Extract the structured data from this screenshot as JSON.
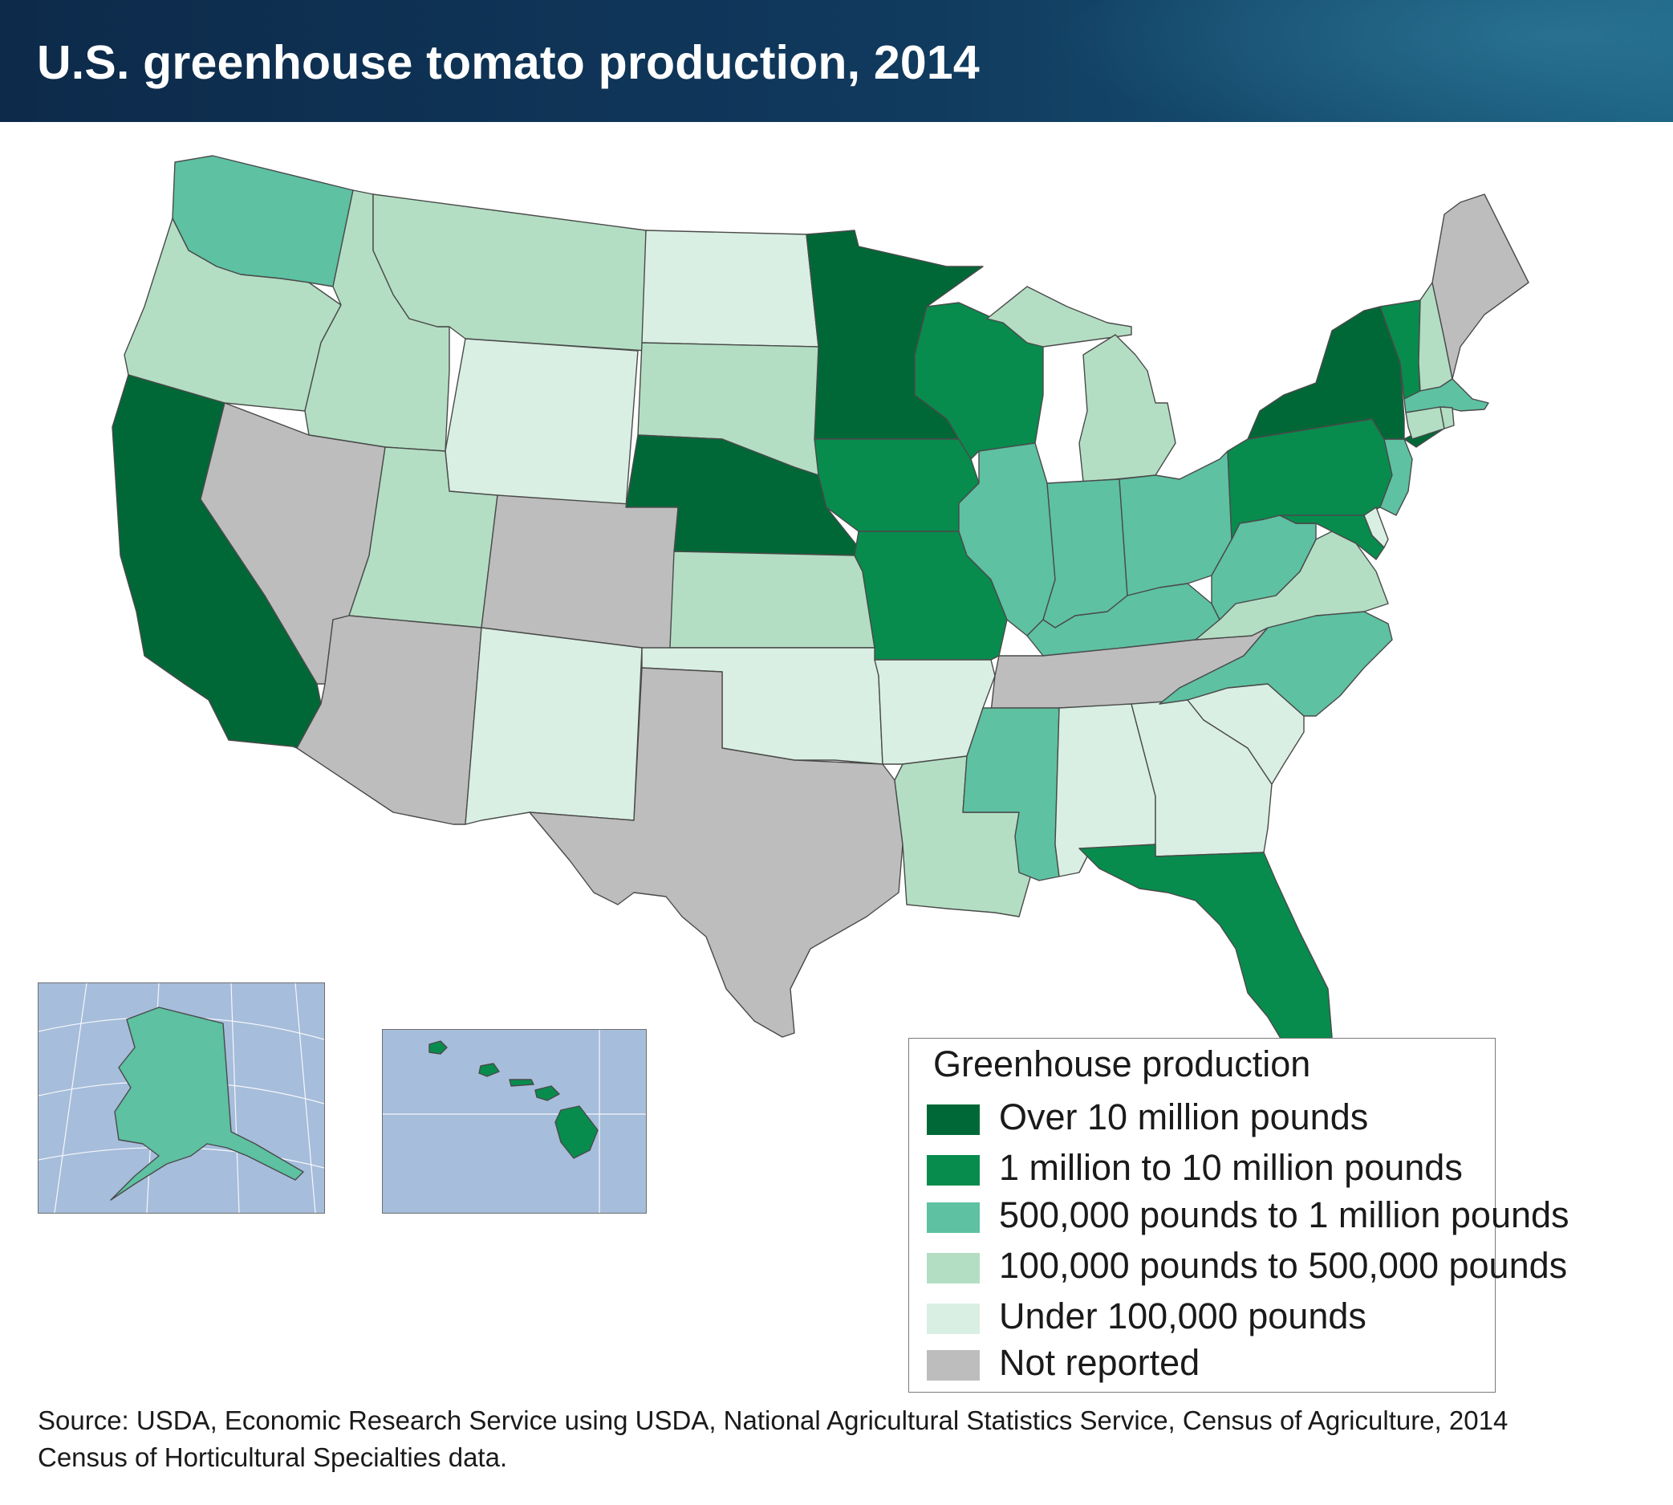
{
  "title": "U.S. greenhouse tomato production, 2014",
  "colors": {
    "over_10m": "#006837",
    "m1_to_10m": "#078c4e",
    "k500_to_1m": "#5dc1a2",
    "k100_to_500k": "#b3dec3",
    "under_100k": "#d9efe3",
    "not_reported": "#bdbdbd",
    "water": "#a6bddb"
  },
  "legend": {
    "title": "Greenhouse production",
    "items": [
      {
        "label": "Over 10 million pounds",
        "category": "over_10m"
      },
      {
        "label": "1 million to 10 million pounds",
        "category": "m1_to_10m"
      },
      {
        "label": "500,000 pounds to 1 million pounds",
        "category": "k500_to_1m"
      },
      {
        "label": "100,000 pounds to 500,000 pounds",
        "category": "k100_to_500k"
      },
      {
        "label": "Under 100,000 pounds",
        "category": "under_100k"
      },
      {
        "label": "Not reported",
        "category": "not_reported"
      }
    ]
  },
  "states": {
    "WA": "k500_to_1m",
    "OR": "k100_to_500k",
    "CA": "over_10m",
    "ID": "k100_to_500k",
    "NV": "not_reported",
    "MT": "k100_to_500k",
    "WY": "under_100k",
    "UT": "k100_to_500k",
    "AZ": "not_reported",
    "CO": "not_reported",
    "NM": "under_100k",
    "ND": "under_100k",
    "SD": "k100_to_500k",
    "NE": "over_10m",
    "KS": "k100_to_500k",
    "OK": "under_100k",
    "TX": "not_reported",
    "MN": "over_10m",
    "IA": "m1_to_10m",
    "MO": "m1_to_10m",
    "AR": "under_100k",
    "LA": "k100_to_500k",
    "WI": "m1_to_10m",
    "IL": "k500_to_1m",
    "MI": "k100_to_500k",
    "IN": "k500_to_1m",
    "OH": "k500_to_1m",
    "KY": "k500_to_1m",
    "TN": "not_reported",
    "MS": "k500_to_1m",
    "AL": "under_100k",
    "GA": "under_100k",
    "FL": "m1_to_10m",
    "SC": "under_100k",
    "NC": "k500_to_1m",
    "VA": "k100_to_500k",
    "WV": "k500_to_1m",
    "PA": "m1_to_10m",
    "NY": "over_10m",
    "VT": "m1_to_10m",
    "NH": "k100_to_500k",
    "ME": "not_reported",
    "MA": "k500_to_1m",
    "RI": "k100_to_500k",
    "CT": "k100_to_500k",
    "NJ": "k500_to_1m",
    "DE": "under_100k",
    "MD": "m1_to_10m",
    "AK": "k500_to_1m",
    "HI": "m1_to_10m"
  },
  "source": "Source: USDA, Economic Research Service using USDA, National Agricultural Statistics Service, Census of Agriculture, 2014 Census of Horticultural Specialties data."
}
